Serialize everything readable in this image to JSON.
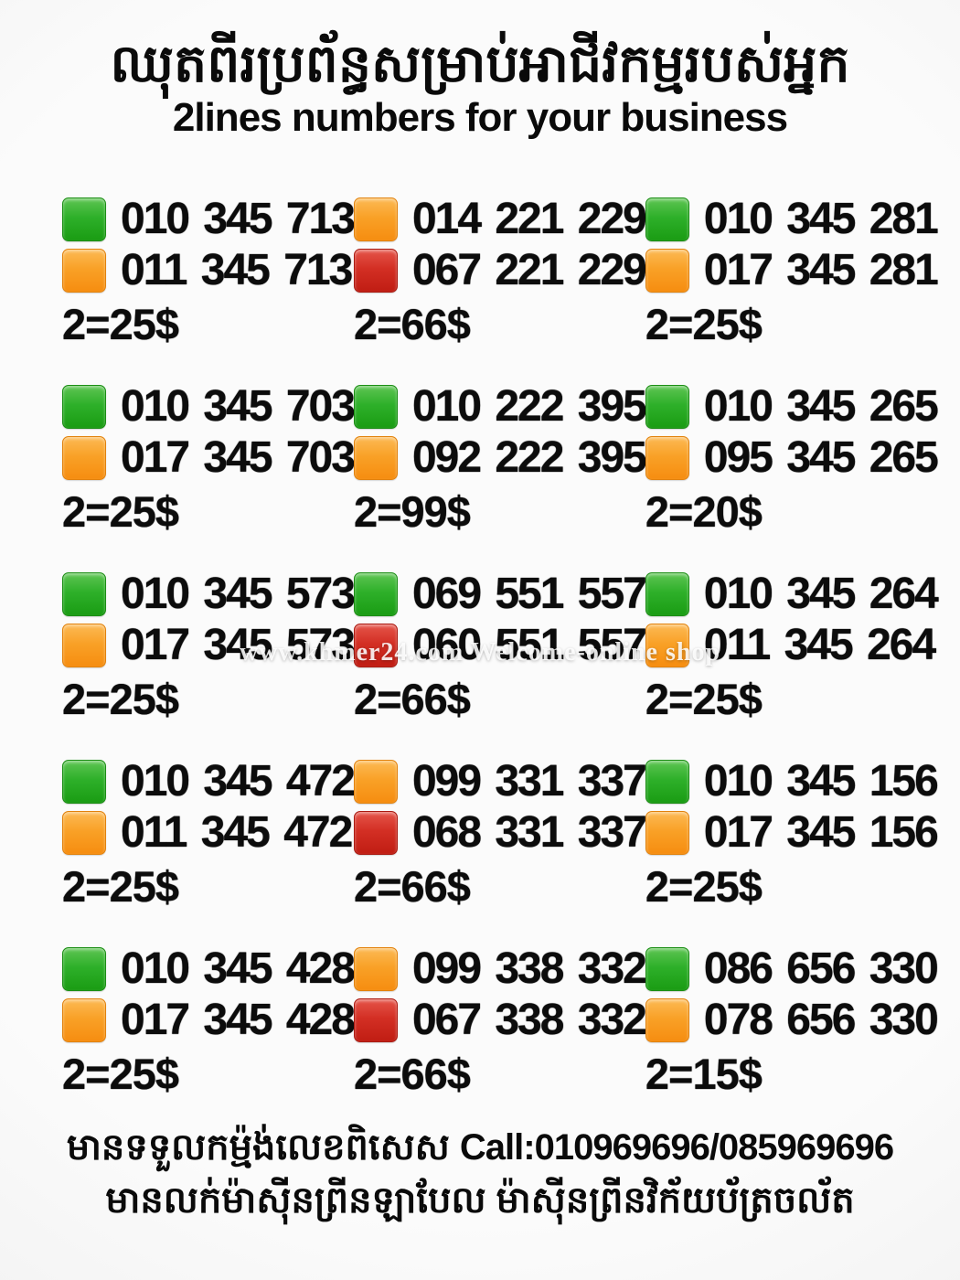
{
  "header": {
    "title_khmer": "ឈុតពីរប្រព័ន្ធសម្រាប់អាជីវកម្មរបស់អ្នក",
    "title_english": "2lines numbers for your business"
  },
  "watermark": "www.khmer24.com Welcome-online shop",
  "colors": {
    "green": "#2eb02a",
    "orange": "#f9a127",
    "red": "#d32f24",
    "text": "#0c0c0c",
    "background": "#f7f7f7"
  },
  "grid": {
    "cells": [
      {
        "lines": [
          {
            "color": "green",
            "number": "010 345 713"
          },
          {
            "color": "orange",
            "number": "011 345 713"
          }
        ],
        "price": "2=25$"
      },
      {
        "lines": [
          {
            "color": "orange",
            "number": "014 221 229"
          },
          {
            "color": "red",
            "number": "067 221 229"
          }
        ],
        "price": "2=66$"
      },
      {
        "lines": [
          {
            "color": "green",
            "number": "010 345 281"
          },
          {
            "color": "orange",
            "number": "017 345 281"
          }
        ],
        "price": "2=25$"
      },
      {
        "lines": [
          {
            "color": "green",
            "number": "010 345 703"
          },
          {
            "color": "orange",
            "number": "017 345 703"
          }
        ],
        "price": "2=25$"
      },
      {
        "lines": [
          {
            "color": "green",
            "number": "010 222 395"
          },
          {
            "color": "orange",
            "number": "092 222 395"
          }
        ],
        "price": "2=99$"
      },
      {
        "lines": [
          {
            "color": "green",
            "number": "010 345 265"
          },
          {
            "color": "orange",
            "number": "095 345 265"
          }
        ],
        "price": "2=20$"
      },
      {
        "lines": [
          {
            "color": "green",
            "number": "010 345 573"
          },
          {
            "color": "orange",
            "number": "017 345 573"
          }
        ],
        "price": "2=25$"
      },
      {
        "lines": [
          {
            "color": "green",
            "number": "069 551 557"
          },
          {
            "color": "red",
            "number": "060 551 557"
          }
        ],
        "price": "2=66$"
      },
      {
        "lines": [
          {
            "color": "green",
            "number": "010 345 264"
          },
          {
            "color": "orange",
            "number": "011 345 264"
          }
        ],
        "price": "2=25$"
      },
      {
        "lines": [
          {
            "color": "green",
            "number": "010 345 472"
          },
          {
            "color": "orange",
            "number": "011 345 472"
          }
        ],
        "price": "2=25$"
      },
      {
        "lines": [
          {
            "color": "orange",
            "number": "099 331 337"
          },
          {
            "color": "red",
            "number": "068 331 337"
          }
        ],
        "price": "2=66$"
      },
      {
        "lines": [
          {
            "color": "green",
            "number": "010 345 156"
          },
          {
            "color": "orange",
            "number": "017 345 156"
          }
        ],
        "price": "2=25$"
      },
      {
        "lines": [
          {
            "color": "green",
            "number": "010 345 428"
          },
          {
            "color": "orange",
            "number": "017 345 428"
          }
        ],
        "price": "2=25$"
      },
      {
        "lines": [
          {
            "color": "orange",
            "number": "099 338 332"
          },
          {
            "color": "red",
            "number": "067 338 332"
          }
        ],
        "price": "2=66$"
      },
      {
        "lines": [
          {
            "color": "green",
            "number": "086 656 330"
          },
          {
            "color": "orange",
            "number": "078 656 330"
          }
        ],
        "price": "2=15$"
      }
    ]
  },
  "footer": {
    "line1_khmer": "មានទទួលកម្ម៉ង់លេខពិសេស",
    "line1_call": "Call:010969696/085969696",
    "line2_khmer": "មានលក់ម៉ាស៊ីនព្រីនឡាបែល ម៉ាស៊ីនព្រីនវិក័យប័ត្រចល័ត"
  }
}
